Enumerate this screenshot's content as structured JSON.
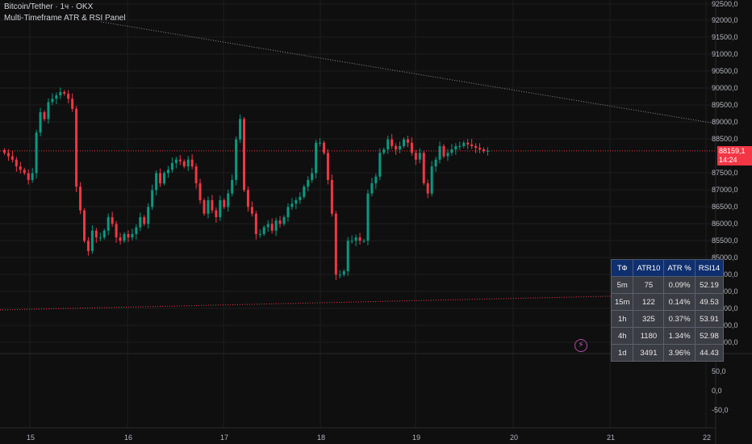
{
  "header": {
    "symbol_line": "Bitcoin/Tether · 1ч · OKX",
    "indicator_name": "Multi-Timeframe ATR & RSI Panel"
  },
  "price_axis": {
    "labels": [
      "92500,0",
      "92000,0",
      "91500,0",
      "91000,0",
      "90500,0",
      "90000,0",
      "89500,0",
      "89000,0",
      "88500,0",
      "87500,0",
      "87000,0",
      "86500,0",
      "86000,0",
      "85500,0",
      "85000,0",
      "84500,0",
      "84000,0",
      "83500,0",
      "83000,0",
      "82500,0"
    ],
    "current_price": "88159,1",
    "countdown": "14:24",
    "tag_color": "#f23645"
  },
  "sub_axis": {
    "labels": [
      "50,0",
      "0,0",
      "-50,0"
    ]
  },
  "time_axis": {
    "labels": [
      "15",
      "16",
      "17",
      "18",
      "19",
      "20",
      "21",
      "22"
    ]
  },
  "atr_table": {
    "headers": [
      "ТФ",
      "ATR10",
      "ATR %",
      "RSI14"
    ],
    "rows": [
      [
        "5m",
        "75",
        "0.09%",
        "52.19"
      ],
      [
        "15m",
        "122",
        "0.14%",
        "49.53"
      ],
      [
        "1h",
        "325",
        "0.37%",
        "53.91"
      ],
      [
        "4h",
        "1180",
        "1.34%",
        "52.98"
      ],
      [
        "1d",
        "3491",
        "3.96%",
        "44.43"
      ]
    ]
  },
  "colors": {
    "up": "#089981",
    "down": "#f23645",
    "background": "#0f0f0f"
  },
  "chart_data": {
    "type": "candlestick",
    "y_range": [
      82250,
      92700
    ],
    "x_range_days": [
      "15",
      "22"
    ],
    "closes": [
      88100,
      88000,
      87900,
      87700,
      87600,
      87500,
      87300,
      87500,
      88700,
      89300,
      89100,
      89600,
      89700,
      89800,
      89900,
      89850,
      89700,
      89400,
      87100,
      86400,
      85500,
      85200,
      85800,
      85600,
      85600,
      85800,
      86200,
      86000,
      85600,
      85500,
      85700,
      85600,
      85700,
      85900,
      86200,
      86000,
      86500,
      87000,
      87500,
      87200,
      87500,
      87600,
      87800,
      87900,
      87850,
      87700,
      87900,
      87700,
      87200,
      86700,
      86300,
      86700,
      86400,
      86200,
      86700,
      86500,
      86900,
      87300,
      88500,
      89100,
      87000,
      86500,
      86300,
      85700,
      85700,
      85900,
      86000,
      85800,
      86100,
      86000,
      86200,
      86500,
      86600,
      86700,
      86800,
      87100,
      87300,
      87500,
      88400,
      88400,
      88100,
      87300,
      86300,
      84500,
      84500,
      84600,
      85500,
      85500,
      85600,
      85500,
      85500,
      86900,
      87200,
      87400,
      88100,
      88200,
      88500,
      88300,
      88200,
      88300,
      88500,
      88400,
      88100,
      87900,
      88100,
      87200,
      86900,
      87700,
      87900,
      88300,
      88000,
      88100,
      88200,
      88300,
      88300,
      88400,
      88350,
      88300,
      88250,
      88200,
      88150,
      88159
    ]
  }
}
